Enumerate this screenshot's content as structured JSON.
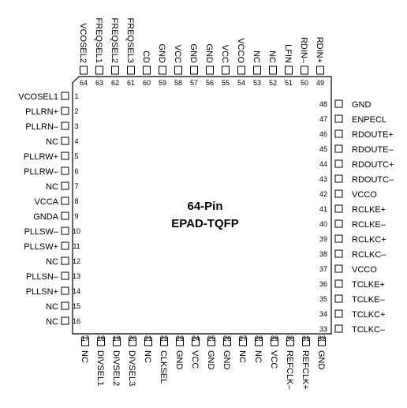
{
  "package": {
    "title_line1": "64-Pin",
    "title_line2": "EPAD-TQFP"
  },
  "pins": {
    "left": [
      {
        "num": "1",
        "name": "VCOSEL1"
      },
      {
        "num": "2",
        "name": "PLLRN+"
      },
      {
        "num": "3",
        "name": "PLLRN–"
      },
      {
        "num": "4",
        "name": "NC"
      },
      {
        "num": "5",
        "name": "PLLRW+"
      },
      {
        "num": "6",
        "name": "PLLRW–"
      },
      {
        "num": "7",
        "name": "NC"
      },
      {
        "num": "8",
        "name": "VCCA"
      },
      {
        "num": "9",
        "name": "GNDA"
      },
      {
        "num": "10",
        "name": "PLLSW–"
      },
      {
        "num": "11",
        "name": "PLLSW+"
      },
      {
        "num": "12",
        "name": "NC"
      },
      {
        "num": "13",
        "name": "PLLSN–"
      },
      {
        "num": "14",
        "name": "PLLSN+"
      },
      {
        "num": "15",
        "name": "NC"
      },
      {
        "num": "16",
        "name": "NC"
      }
    ],
    "bottom": [
      {
        "num": "17",
        "name": "NC"
      },
      {
        "num": "18",
        "name": "DIVSEL1"
      },
      {
        "num": "19",
        "name": "DIVSEL2"
      },
      {
        "num": "20",
        "name": "DIVSEL3"
      },
      {
        "num": "21",
        "name": "NC"
      },
      {
        "num": "22",
        "name": "CLKSEL"
      },
      {
        "num": "23",
        "name": "GND"
      },
      {
        "num": "24",
        "name": "VCC"
      },
      {
        "num": "25",
        "name": "GND"
      },
      {
        "num": "26",
        "name": "GND"
      },
      {
        "num": "27",
        "name": "NC"
      },
      {
        "num": "28",
        "name": "NC"
      },
      {
        "num": "29",
        "name": "VCC"
      },
      {
        "num": "30",
        "name": "REFCLK–"
      },
      {
        "num": "31",
        "name": "REFCLK+"
      },
      {
        "num": "32",
        "name": "GND"
      }
    ],
    "right": [
      {
        "num": "33",
        "name": "TCLKC–"
      },
      {
        "num": "34",
        "name": "TCLKC+"
      },
      {
        "num": "35",
        "name": "TCLKE–"
      },
      {
        "num": "36",
        "name": "TCLKE+"
      },
      {
        "num": "37",
        "name": "VCCO"
      },
      {
        "num": "38",
        "name": "RCLKC–"
      },
      {
        "num": "39",
        "name": "RCLKC+"
      },
      {
        "num": "40",
        "name": "RCLKE–"
      },
      {
        "num": "41",
        "name": "RCLKE+"
      },
      {
        "num": "42",
        "name": "VCCO"
      },
      {
        "num": "43",
        "name": "RDOUTC–"
      },
      {
        "num": "44",
        "name": "RDOUTC+"
      },
      {
        "num": "45",
        "name": "RDOUTE–"
      },
      {
        "num": "46",
        "name": "RDOUTE+"
      },
      {
        "num": "47",
        "name": "ENPECL"
      },
      {
        "num": "48",
        "name": "GND"
      }
    ],
    "top": [
      {
        "num": "49",
        "name": "RDIN+"
      },
      {
        "num": "50",
        "name": "RDIN–"
      },
      {
        "num": "51",
        "name": "LFIN"
      },
      {
        "num": "52",
        "name": "NC"
      },
      {
        "num": "53",
        "name": "NC"
      },
      {
        "num": "54",
        "name": "VCCO"
      },
      {
        "num": "55",
        "name": "VCC"
      },
      {
        "num": "56",
        "name": "GND"
      },
      {
        "num": "57",
        "name": "GND"
      },
      {
        "num": "58",
        "name": "VCC"
      },
      {
        "num": "59",
        "name": "GND"
      },
      {
        "num": "60",
        "name": "CD"
      },
      {
        "num": "61",
        "name": "FREQSEL3"
      },
      {
        "num": "62",
        "name": "FREQSEL2"
      },
      {
        "num": "63",
        "name": "FREQSEL1"
      },
      {
        "num": "64",
        "name": "VCOSEL2"
      }
    ]
  }
}
